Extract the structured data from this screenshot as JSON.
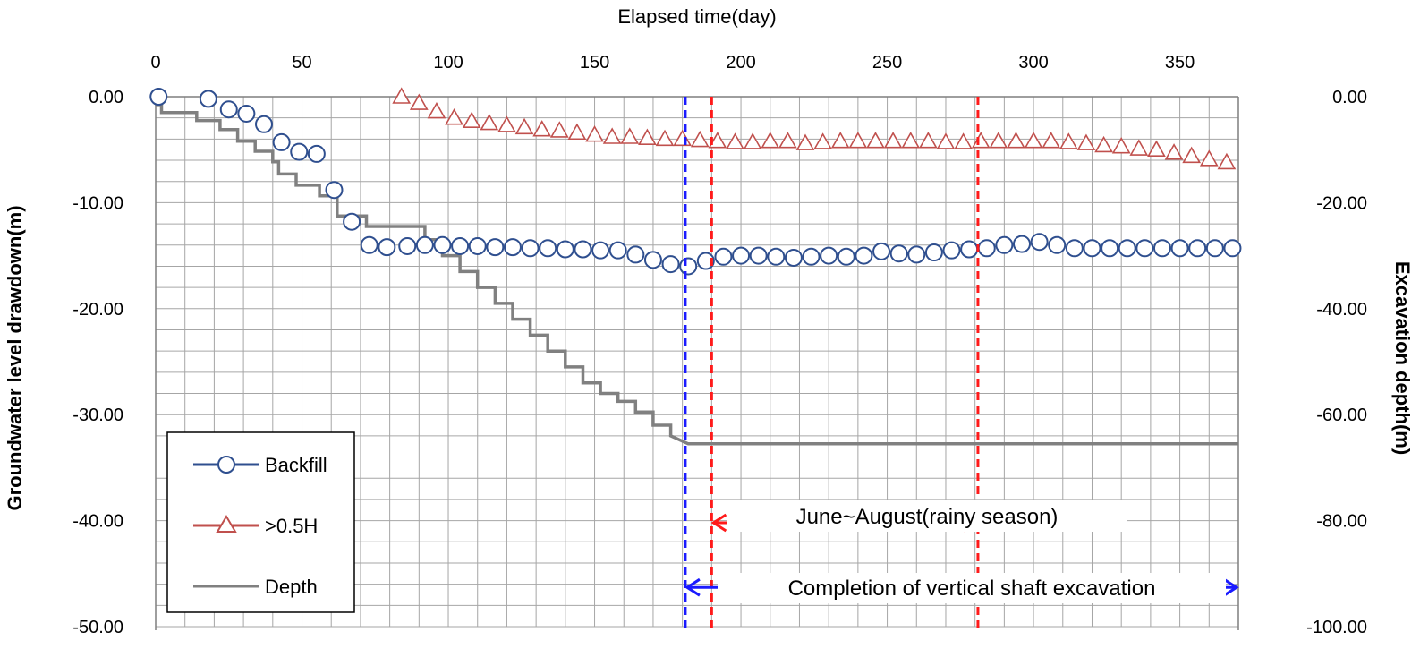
{
  "chart_data": {
    "type": "line",
    "title": "",
    "xlabel": "Elapsed time(day)",
    "ylabel": "Groundwater level drawdown(m)",
    "y2label": "Excavation depth(m)",
    "xlim": [
      0,
      370
    ],
    "ylim": [
      -50,
      0
    ],
    "y2lim": [
      -100,
      0
    ],
    "x_ticks": [
      "0",
      "50",
      "100",
      "150",
      "200",
      "250",
      "300",
      "350"
    ],
    "x_tick_values": [
      0,
      50,
      100,
      150,
      200,
      250,
      300,
      350
    ],
    "y_ticks": [
      "0.00",
      "-10.00",
      "-20.00",
      "-30.00",
      "-40.00",
      "-50.00"
    ],
    "y_tick_values": [
      0,
      -10,
      -20,
      -30,
      -40,
      -50
    ],
    "y2_ticks": [
      "0.00",
      "-20.00",
      "-40.00",
      "-60.00",
      "-80.00",
      "-100.00"
    ],
    "y2_tick_values": [
      0,
      -20,
      -40,
      -60,
      -80,
      -100
    ],
    "grid": true,
    "legend_position": "bottom-left",
    "series": [
      {
        "name": "Backfill",
        "color": "#2f4f8f",
        "marker": "circle",
        "axis": "left",
        "x": [
          1,
          18,
          25,
          31,
          37,
          43,
          49,
          55,
          61,
          67,
          73,
          79,
          86,
          92,
          98,
          104,
          110,
          116,
          122,
          128,
          134,
          140,
          146,
          152,
          158,
          164,
          170,
          176,
          182,
          188,
          194,
          200,
          206,
          212,
          218,
          224,
          230,
          236,
          242,
          248,
          254,
          260,
          266,
          272,
          278,
          284,
          290,
          296,
          302,
          308,
          314,
          320,
          326,
          332,
          338,
          344,
          350,
          356,
          362,
          368
        ],
        "y": [
          0.0,
          -0.2,
          -1.2,
          -1.6,
          -2.6,
          -4.3,
          -5.2,
          -5.4,
          -8.8,
          -11.8,
          -14.0,
          -14.2,
          -14.1,
          -14.0,
          -14.0,
          -14.1,
          -14.1,
          -14.2,
          -14.2,
          -14.3,
          -14.3,
          -14.4,
          -14.4,
          -14.5,
          -14.5,
          -14.9,
          -15.4,
          -15.8,
          -16.0,
          -15.5,
          -15.1,
          -15.0,
          -15.0,
          -15.1,
          -15.2,
          -15.1,
          -15.0,
          -15.1,
          -15.0,
          -14.6,
          -14.8,
          -14.9,
          -14.7,
          -14.5,
          -14.4,
          -14.3,
          -14.0,
          -13.9,
          -13.7,
          -14.0,
          -14.3,
          -14.3,
          -14.3,
          -14.3,
          -14.3,
          -14.3,
          -14.3,
          -14.3,
          -14.3,
          -14.3
        ]
      },
      {
        "name": ">0.5H",
        "color": "#c0504d",
        "marker": "triangle",
        "axis": "left",
        "x": [
          84,
          90,
          96,
          102,
          108,
          114,
          120,
          126,
          132,
          138,
          144,
          150,
          156,
          162,
          168,
          174,
          180,
          186,
          192,
          198,
          204,
          210,
          216,
          222,
          228,
          234,
          240,
          246,
          252,
          258,
          264,
          270,
          276,
          282,
          288,
          294,
          300,
          306,
          312,
          318,
          324,
          330,
          336,
          342,
          348,
          354,
          360,
          366
        ],
        "y": [
          0.0,
          -0.6,
          -1.4,
          -2.0,
          -2.3,
          -2.5,
          -2.7,
          -2.9,
          -3.1,
          -3.2,
          -3.4,
          -3.6,
          -3.8,
          -3.8,
          -3.9,
          -4.0,
          -4.0,
          -4.1,
          -4.2,
          -4.3,
          -4.3,
          -4.2,
          -4.2,
          -4.4,
          -4.3,
          -4.2,
          -4.2,
          -4.2,
          -4.2,
          -4.2,
          -4.2,
          -4.3,
          -4.3,
          -4.2,
          -4.2,
          -4.2,
          -4.2,
          -4.2,
          -4.3,
          -4.4,
          -4.6,
          -4.7,
          -4.9,
          -5.0,
          -5.3,
          -5.6,
          -5.9,
          -6.2
        ]
      },
      {
        "name": "Depth",
        "color": "#808080",
        "marker": "none",
        "axis": "right",
        "x": [
          0,
          2,
          2,
          14,
          14,
          22,
          22,
          28,
          28,
          34,
          34,
          40,
          40,
          42,
          42,
          48,
          48,
          56,
          56,
          62,
          62,
          72,
          72,
          92,
          92,
          98,
          98,
          104,
          104,
          110,
          110,
          116,
          116,
          122,
          122,
          128,
          128,
          134,
          134,
          140,
          140,
          146,
          146,
          152,
          152,
          158,
          158,
          164,
          164,
          170,
          170,
          176,
          176,
          182,
          370
        ],
        "y": [
          -1.5,
          -1.5,
          -3.0,
          -3.0,
          -4.5,
          -4.5,
          -6.2,
          -6.2,
          -8.4,
          -8.4,
          -10.3,
          -10.3,
          -12.3,
          -12.3,
          -14.6,
          -14.6,
          -16.7,
          -16.7,
          -18.7,
          -18.7,
          -22.5,
          -22.5,
          -24.5,
          -24.5,
          -27.0,
          -27.0,
          -30.0,
          -30.0,
          -33.0,
          -33.0,
          -36.0,
          -36.0,
          -39.0,
          -39.0,
          -42.0,
          -42.0,
          -45.0,
          -45.0,
          -48.0,
          -48.0,
          -51.0,
          -51.0,
          -54.0,
          -54.0,
          -56.0,
          -56.0,
          -57.5,
          -57.5,
          -59.5,
          -59.5,
          -62.0,
          -62.0,
          -64.0,
          -65.5,
          -65.5
        ]
      }
    ],
    "vlines": [
      {
        "x": 181,
        "color": "#1a1aff",
        "style": "dashed"
      },
      {
        "x": 190,
        "color": "#ff1a1a",
        "style": "dashed"
      },
      {
        "x": 281,
        "color": "#ff1a1a",
        "style": "dashed"
      }
    ],
    "annotations": [
      {
        "text": "June~August(rainy  season)",
        "arrow_from": 190,
        "arrow_to": 281,
        "y": -40.2,
        "color": "#ff1a1a"
      },
      {
        "text": "Completion of vertical shaft excavation",
        "arrow_from": 181,
        "arrow_to": 370,
        "y": -46.3,
        "color": "#1a1aff"
      }
    ]
  }
}
